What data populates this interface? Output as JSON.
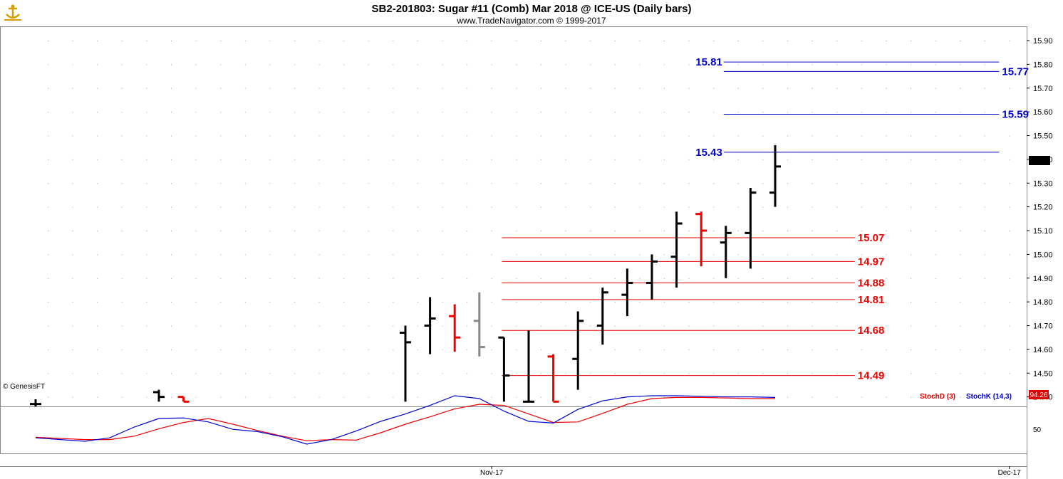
{
  "header": {
    "title": "SB2-201803:  Sugar #11 (Comb) Mar 2018 @ ICE-US  (Daily bars)",
    "subtitle": "www.TradeNavigator.com © 1999-2017",
    "logo_icon": "anchor-logo-icon"
  },
  "watermark": "© GenesisFT",
  "colors": {
    "blue_level": "#0000cc",
    "red_level": "#dd0000",
    "bar_up": "#000000",
    "bar_down": "#ee0000",
    "bar_neutral": "#888888",
    "stoch_d": "#dd0000",
    "stoch_k": "#0000cc"
  },
  "chart_data": [
    {
      "type": "ohlc",
      "title": "",
      "ylim": [
        14.36,
        15.96
      ],
      "yticks": [
        "15.90",
        "15.80",
        "15.70",
        "15.60",
        "15.50",
        "15.40",
        "15.30",
        "15.20",
        "15.10",
        "15.00",
        "14.90",
        "14.80",
        "14.70",
        "14.60",
        "14.50",
        "14.40"
      ],
      "last_price": "15.37",
      "x_labels": [
        {
          "label": "Nov-17",
          "index": 18.5
        },
        {
          "label": "Dec-17",
          "index": 39.5
        }
      ],
      "bars": [
        {
          "i": 0,
          "o": 14.37,
          "h": 14.39,
          "l": 14.36,
          "c": 14.37,
          "color": "black"
        },
        {
          "i": 5,
          "o": 14.42,
          "h": 14.43,
          "l": 14.38,
          "c": 14.4,
          "color": "black"
        },
        {
          "i": 6,
          "o": 14.4,
          "h": 14.4,
          "l": 14.38,
          "c": 14.38,
          "color": "red"
        },
        {
          "i": 15,
          "o": 14.67,
          "h": 14.7,
          "l": 14.38,
          "c": 14.63,
          "color": "black"
        },
        {
          "i": 16,
          "o": 14.7,
          "h": 14.82,
          "l": 14.58,
          "c": 14.73,
          "color": "black"
        },
        {
          "i": 17,
          "o": 14.74,
          "h": 14.79,
          "l": 14.59,
          "c": 14.65,
          "color": "red"
        },
        {
          "i": 18,
          "o": 14.72,
          "h": 14.84,
          "l": 14.57,
          "c": 14.61,
          "color": "gray"
        },
        {
          "i": 19,
          "o": 14.65,
          "h": 14.65,
          "l": 14.38,
          "c": 14.49,
          "color": "black"
        },
        {
          "i": 20,
          "o": 14.38,
          "h": 14.68,
          "l": 14.38,
          "c": 14.38,
          "color": "black"
        },
        {
          "i": 21,
          "o": 14.57,
          "h": 14.58,
          "l": 14.38,
          "c": 14.38,
          "color": "red"
        },
        {
          "i": 22,
          "o": 14.56,
          "h": 14.76,
          "l": 14.43,
          "c": 14.72,
          "color": "black"
        },
        {
          "i": 23,
          "o": 14.7,
          "h": 14.86,
          "l": 14.62,
          "c": 14.84,
          "color": "black"
        },
        {
          "i": 24,
          "o": 14.83,
          "h": 14.94,
          "l": 14.74,
          "c": 14.88,
          "color": "black"
        },
        {
          "i": 25,
          "o": 14.88,
          "h": 15.0,
          "l": 14.81,
          "c": 14.97,
          "color": "black"
        },
        {
          "i": 26,
          "o": 14.99,
          "h": 15.18,
          "l": 14.86,
          "c": 15.13,
          "color": "black"
        },
        {
          "i": 27,
          "o": 15.17,
          "h": 15.18,
          "l": 14.95,
          "c": 15.1,
          "color": "red"
        },
        {
          "i": 28,
          "o": 15.05,
          "h": 15.12,
          "l": 14.9,
          "c": 15.09,
          "color": "black"
        },
        {
          "i": 29,
          "o": 15.09,
          "h": 15.28,
          "l": 14.94,
          "c": 15.26,
          "color": "black"
        },
        {
          "i": 30,
          "o": 15.26,
          "h": 15.46,
          "l": 15.2,
          "c": 15.37,
          "color": "black"
        }
      ],
      "levels": [
        {
          "value": 15.81,
          "label": "15.81",
          "color": "blue",
          "label_side": "left",
          "from_i": 28,
          "to_i": 39
        },
        {
          "value": 15.77,
          "label": "15.77",
          "color": "blue",
          "label_side": "right",
          "from_i": 28,
          "to_i": 39
        },
        {
          "value": 15.59,
          "label": "15.59",
          "color": "blue",
          "label_side": "right",
          "from_i": 28,
          "to_i": 39
        },
        {
          "value": 15.43,
          "label": "15.43",
          "color": "blue",
          "label_side": "left",
          "from_i": 28,
          "to_i": 39
        },
        {
          "value": 15.07,
          "label": "15.07",
          "color": "red",
          "label_side": "right",
          "from_i": 19,
          "to_i": 33
        },
        {
          "value": 14.97,
          "label": "14.97",
          "color": "red",
          "label_side": "right",
          "from_i": 19,
          "to_i": 33
        },
        {
          "value": 14.88,
          "label": "14.88",
          "color": "red",
          "label_side": "right",
          "from_i": 19,
          "to_i": 33
        },
        {
          "value": 14.81,
          "label": "14.81",
          "color": "red",
          "label_side": "right",
          "from_i": 19,
          "to_i": 33
        },
        {
          "value": 14.68,
          "label": "14.68",
          "color": "red",
          "label_side": "right",
          "from_i": 19,
          "to_i": 33
        },
        {
          "value": 14.49,
          "label": "14.49",
          "color": "red",
          "label_side": "right",
          "from_i": 19,
          "to_i": 33
        }
      ]
    },
    {
      "type": "line",
      "title": "",
      "ylim": [
        -10,
        105
      ],
      "yticks": [
        "50"
      ],
      "last_value": "94.26",
      "legend": [
        {
          "name": "StochD (3)",
          "color": "red"
        },
        {
          "name": "StochK (14,3)",
          "color": "blue"
        }
      ],
      "x": [
        0,
        2,
        3,
        4,
        5,
        6,
        7,
        8,
        9,
        10,
        11,
        12,
        13,
        14,
        15,
        16,
        17,
        18,
        19,
        20,
        21,
        22,
        23,
        24,
        25,
        26,
        27,
        28,
        29,
        30
      ],
      "series": [
        {
          "name": "StochD (3)",
          "color": "red",
          "values": [
            22,
            18,
            18,
            24,
            37,
            48,
            55,
            45,
            34,
            24,
            16,
            18,
            17,
            30,
            45,
            58,
            72,
            80,
            78,
            63,
            48,
            49,
            64,
            80,
            90,
            92,
            92,
            91,
            90,
            90
          ]
        },
        {
          "name": "StochK (14,3)",
          "color": "blue",
          "values": [
            21,
            15,
            21,
            40,
            55,
            56,
            49,
            36,
            32,
            23,
            10,
            18,
            33,
            50,
            63,
            78,
            95,
            90,
            68,
            50,
            47,
            71,
            86,
            93,
            95,
            95,
            94,
            93,
            93,
            92
          ]
        }
      ]
    }
  ]
}
